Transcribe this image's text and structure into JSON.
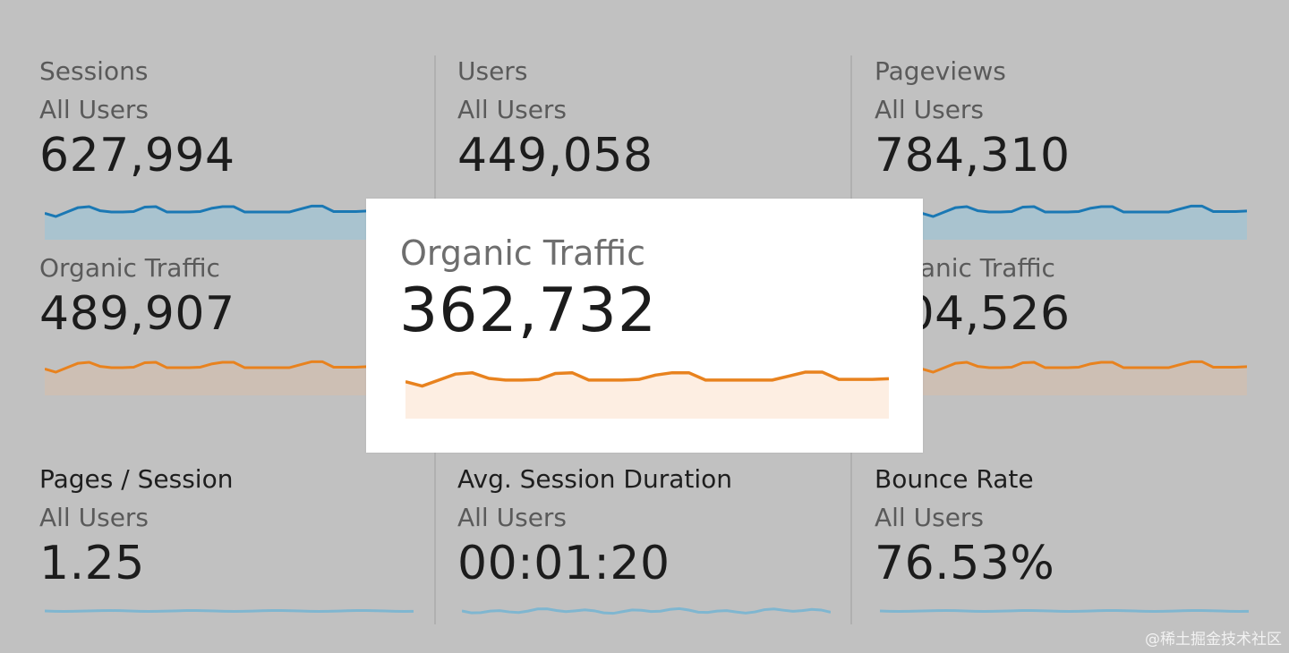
{
  "metrics": [
    {
      "title": "Sessions",
      "segment": "All Users",
      "value": "627,994",
      "sub_title": "Organic Traffic",
      "sub_value": "489,907"
    },
    {
      "title": "Users",
      "segment": "All Users",
      "value": "449,058",
      "sub_title": "Organic Traffic",
      "sub_value": "362,732"
    },
    {
      "title": "Pageviews",
      "segment": "All Users",
      "value": "784,310",
      "sub_title": "Organic Traffic",
      "sub_value": "604,526"
    },
    {
      "title": "Pages / Session",
      "segment": "All Users",
      "value": "1.25"
    },
    {
      "title": "Avg. Session Duration",
      "segment": "All Users",
      "value": "00:01:20"
    },
    {
      "title": "Bounce Rate",
      "segment": "All Users",
      "value": "76.53%"
    }
  ],
  "highlight": {
    "title": "Organic Traffic",
    "value": "362,732"
  },
  "colors": {
    "background": "#c1c1c1",
    "blue_line": "#1a78b4",
    "blue_fill": "#a9c3cf",
    "orange_line": "#e8821e",
    "orange_fill": "#cdbfb4",
    "orange_fill_highlight": "#fdeee2",
    "flat_line": "#7fb6d0"
  },
  "sparkline_shape": [
    0.55,
    0.42,
    0.6,
    0.78,
    0.82,
    0.65,
    0.6,
    0.6,
    0.62,
    0.8,
    0.82,
    0.6,
    0.6,
    0.6,
    0.62,
    0.75,
    0.82,
    0.82,
    0.6,
    0.6,
    0.6,
    0.6,
    0.6,
    0.72,
    0.84,
    0.84,
    0.62,
    0.62,
    0.62,
    0.64
  ],
  "watermark": "@稀土掘金技术社区"
}
